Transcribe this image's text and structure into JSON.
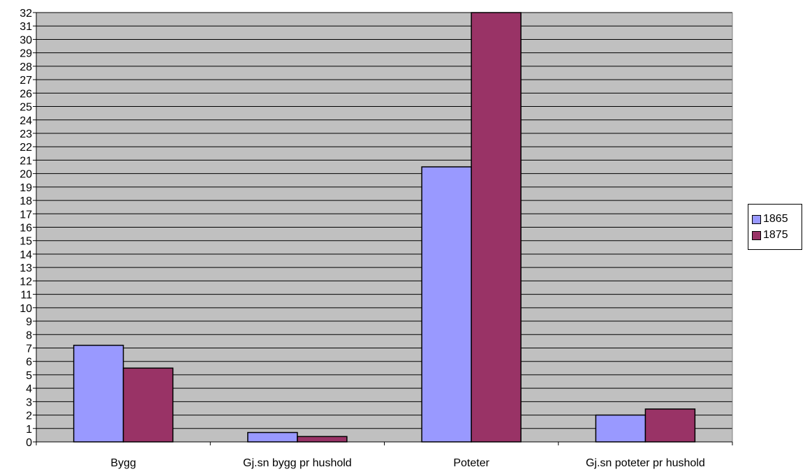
{
  "chart_data": {
    "type": "bar",
    "title": "",
    "xlabel": "",
    "ylabel": "",
    "categories": [
      "Bygg",
      "Gj.sn bygg pr hushold",
      "Poteter",
      "Gj.sn poteter pr hushold"
    ],
    "series": [
      {
        "name": "1865",
        "values": [
          7.2,
          0.7,
          20.5,
          2.0
        ],
        "color": "#9999ff"
      },
      {
        "name": "1875",
        "values": [
          5.5,
          0.4,
          32.0,
          2.45
        ],
        "color": "#993366"
      }
    ],
    "ylim": [
      0,
      32
    ],
    "yticks": [
      "0",
      "1",
      "2",
      "3",
      "4",
      "5",
      "6",
      "7",
      "8",
      "9",
      "10",
      "11",
      "12",
      "13",
      "14",
      "15",
      "16",
      "17",
      "18",
      "19",
      "20",
      "21",
      "22",
      "23",
      "24",
      "25",
      "26",
      "27",
      "28",
      "29",
      "30",
      "31",
      "32"
    ],
    "grid": true,
    "plot_background": "#c0c0c0",
    "legend_position": "right"
  }
}
